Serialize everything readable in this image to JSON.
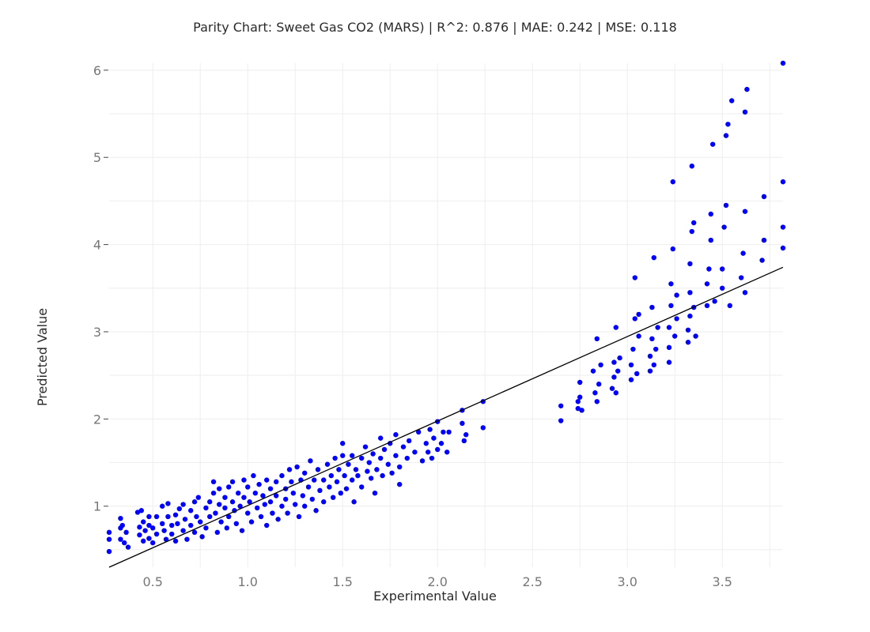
{
  "chart_data": {
    "type": "scatter",
    "title": "Parity Chart: Sweet Gas CO2 (MARS) | R^2: 0.876 | MAE: 0.242 | MSE: 0.118",
    "xlabel": "Experimental Value",
    "ylabel": "Predicted Value",
    "xlim": [
      0.27,
      3.82
    ],
    "ylim": [
      0.3,
      6.08
    ],
    "xticks": [
      0.5,
      1.0,
      1.5,
      2.0,
      2.5,
      3.0,
      3.5
    ],
    "xtick_labels": [
      "0.5",
      "1.0",
      "1.5",
      "2.0",
      "2.5",
      "3.0",
      "3.5"
    ],
    "yticks": [
      1,
      2,
      3,
      4,
      5,
      6
    ],
    "ytick_labels": [
      "1",
      "2",
      "3",
      "4",
      "5",
      "6"
    ],
    "grid": true,
    "legend": "none",
    "point_color": "#0000ff",
    "line_color": "#000000",
    "reference_line": {
      "x": [
        0.27,
        3.82
      ],
      "y": [
        0.3,
        3.74
      ]
    },
    "series": [
      {
        "points": [
          [
            0.27,
            0.48
          ],
          [
            0.27,
            0.62
          ],
          [
            0.27,
            0.7
          ],
          [
            0.33,
            0.86
          ],
          [
            0.33,
            0.75
          ],
          [
            0.33,
            0.62
          ],
          [
            0.34,
            0.78
          ],
          [
            0.35,
            0.58
          ],
          [
            0.36,
            0.7
          ],
          [
            0.37,
            0.53
          ],
          [
            0.42,
            0.93
          ],
          [
            0.43,
            0.76
          ],
          [
            0.43,
            0.67
          ],
          [
            0.44,
            0.95
          ],
          [
            0.45,
            0.82
          ],
          [
            0.45,
            0.6
          ],
          [
            0.46,
            0.72
          ],
          [
            0.48,
            0.88
          ],
          [
            0.48,
            0.78
          ],
          [
            0.48,
            0.63
          ],
          [
            0.5,
            0.75
          ],
          [
            0.5,
            0.58
          ],
          [
            0.52,
            0.68
          ],
          [
            0.52,
            0.88
          ],
          [
            0.55,
            1.0
          ],
          [
            0.55,
            0.8
          ],
          [
            0.56,
            0.72
          ],
          [
            0.57,
            0.62
          ],
          [
            0.58,
            0.88
          ],
          [
            0.58,
            1.03
          ],
          [
            0.6,
            0.78
          ],
          [
            0.6,
            0.68
          ],
          [
            0.62,
            0.6
          ],
          [
            0.62,
            0.9
          ],
          [
            0.63,
            0.8
          ],
          [
            0.64,
            0.97
          ],
          [
            0.66,
            0.72
          ],
          [
            0.66,
            1.02
          ],
          [
            0.67,
            0.85
          ],
          [
            0.68,
            0.62
          ],
          [
            0.7,
            0.95
          ],
          [
            0.7,
            0.78
          ],
          [
            0.72,
            1.05
          ],
          [
            0.72,
            0.7
          ],
          [
            0.73,
            0.88
          ],
          [
            0.74,
            1.1
          ],
          [
            0.75,
            0.82
          ],
          [
            0.76,
            0.65
          ],
          [
            0.78,
            0.98
          ],
          [
            0.78,
            0.75
          ],
          [
            0.8,
            1.05
          ],
          [
            0.8,
            0.88
          ],
          [
            0.82,
            1.28
          ],
          [
            0.82,
            1.15
          ],
          [
            0.83,
            0.92
          ],
          [
            0.84,
            0.7
          ],
          [
            0.85,
            1.2
          ],
          [
            0.85,
            1.02
          ],
          [
            0.86,
            0.82
          ],
          [
            0.88,
            0.98
          ],
          [
            0.88,
            1.1
          ],
          [
            0.89,
            0.75
          ],
          [
            0.9,
            1.22
          ],
          [
            0.9,
            0.88
          ],
          [
            0.92,
            1.28
          ],
          [
            0.92,
            1.05
          ],
          [
            0.93,
            0.95
          ],
          [
            0.94,
            0.8
          ],
          [
            0.95,
            1.15
          ],
          [
            0.96,
            1.0
          ],
          [
            0.97,
            0.72
          ],
          [
            0.98,
            1.3
          ],
          [
            0.98,
            1.1
          ],
          [
            1.0,
            1.22
          ],
          [
            1.0,
            0.92
          ],
          [
            1.01,
            1.05
          ],
          [
            1.02,
            0.82
          ],
          [
            1.03,
            1.35
          ],
          [
            1.04,
            1.15
          ],
          [
            1.05,
            0.98
          ],
          [
            1.06,
            1.25
          ],
          [
            1.07,
            0.88
          ],
          [
            1.08,
            1.12
          ],
          [
            1.09,
            1.02
          ],
          [
            1.1,
            1.3
          ],
          [
            1.1,
            0.78
          ],
          [
            1.12,
            1.2
          ],
          [
            1.12,
            1.05
          ],
          [
            1.13,
            0.92
          ],
          [
            1.15,
            1.28
          ],
          [
            1.15,
            1.12
          ],
          [
            1.16,
            0.85
          ],
          [
            1.18,
            1.35
          ],
          [
            1.18,
            1.0
          ],
          [
            1.2,
            1.2
          ],
          [
            1.2,
            1.08
          ],
          [
            1.21,
            0.92
          ],
          [
            1.22,
            1.42
          ],
          [
            1.23,
            1.28
          ],
          [
            1.24,
            1.15
          ],
          [
            1.25,
            1.02
          ],
          [
            1.26,
            1.45
          ],
          [
            1.27,
            0.88
          ],
          [
            1.28,
            1.3
          ],
          [
            1.29,
            1.12
          ],
          [
            1.3,
            1.38
          ],
          [
            1.3,
            1.0
          ],
          [
            1.32,
            1.22
          ],
          [
            1.33,
            1.52
          ],
          [
            1.34,
            1.08
          ],
          [
            1.35,
            1.3
          ],
          [
            1.36,
            0.95
          ],
          [
            1.37,
            1.42
          ],
          [
            1.38,
            1.18
          ],
          [
            1.4,
            1.3
          ],
          [
            1.4,
            1.05
          ],
          [
            1.42,
            1.48
          ],
          [
            1.43,
            1.22
          ],
          [
            1.44,
            1.35
          ],
          [
            1.45,
            1.1
          ],
          [
            1.46,
            1.55
          ],
          [
            1.47,
            1.28
          ],
          [
            1.48,
            1.42
          ],
          [
            1.49,
            1.15
          ],
          [
            1.5,
            1.58
          ],
          [
            1.5,
            1.72
          ],
          [
            1.51,
            1.35
          ],
          [
            1.52,
            1.2
          ],
          [
            1.53,
            1.48
          ],
          [
            1.55,
            1.3
          ],
          [
            1.55,
            1.58
          ],
          [
            1.56,
            1.05
          ],
          [
            1.57,
            1.42
          ],
          [
            1.58,
            1.35
          ],
          [
            1.6,
            1.55
          ],
          [
            1.6,
            1.22
          ],
          [
            1.62,
            1.68
          ],
          [
            1.63,
            1.4
          ],
          [
            1.64,
            1.5
          ],
          [
            1.65,
            1.32
          ],
          [
            1.66,
            1.6
          ],
          [
            1.67,
            1.15
          ],
          [
            1.68,
            1.42
          ],
          [
            1.7,
            1.55
          ],
          [
            1.7,
            1.78
          ],
          [
            1.71,
            1.35
          ],
          [
            1.72,
            1.65
          ],
          [
            1.74,
            1.48
          ],
          [
            1.75,
            1.72
          ],
          [
            1.76,
            1.38
          ],
          [
            1.78,
            1.58
          ],
          [
            1.78,
            1.82
          ],
          [
            1.8,
            1.45
          ],
          [
            1.8,
            1.25
          ],
          [
            1.82,
            1.68
          ],
          [
            1.84,
            1.55
          ],
          [
            1.85,
            1.75
          ],
          [
            1.88,
            1.62
          ],
          [
            1.9,
            1.85
          ],
          [
            1.92,
            1.52
          ],
          [
            1.94,
            1.72
          ],
          [
            1.95,
            1.62
          ],
          [
            1.96,
            1.88
          ],
          [
            1.97,
            1.55
          ],
          [
            1.98,
            1.78
          ],
          [
            2.0,
            1.97
          ],
          [
            2.0,
            1.65
          ],
          [
            2.02,
            1.72
          ],
          [
            2.03,
            1.85
          ],
          [
            2.05,
            1.62
          ],
          [
            2.06,
            1.85
          ],
          [
            2.13,
            2.1
          ],
          [
            2.13,
            1.95
          ],
          [
            2.14,
            1.75
          ],
          [
            2.15,
            1.82
          ],
          [
            2.24,
            2.2
          ],
          [
            2.24,
            1.9
          ],
          [
            2.65,
            2.15
          ],
          [
            2.65,
            1.98
          ],
          [
            2.74,
            2.2
          ],
          [
            2.74,
            2.12
          ],
          [
            2.75,
            2.25
          ],
          [
            2.75,
            2.42
          ],
          [
            2.76,
            2.1
          ],
          [
            2.82,
            2.55
          ],
          [
            2.83,
            2.3
          ],
          [
            2.84,
            2.2
          ],
          [
            2.85,
            2.4
          ],
          [
            2.86,
            2.62
          ],
          [
            2.84,
            2.92
          ],
          [
            2.92,
            2.35
          ],
          [
            2.93,
            2.48
          ],
          [
            2.93,
            2.65
          ],
          [
            2.94,
            2.3
          ],
          [
            2.94,
            3.05
          ],
          [
            2.95,
            2.55
          ],
          [
            2.96,
            2.7
          ],
          [
            3.02,
            2.45
          ],
          [
            3.02,
            2.62
          ],
          [
            3.03,
            2.8
          ],
          [
            3.04,
            3.15
          ],
          [
            3.04,
            3.62
          ],
          [
            3.05,
            2.52
          ],
          [
            3.06,
            2.95
          ],
          [
            3.06,
            3.2
          ],
          [
            3.12,
            2.55
          ],
          [
            3.12,
            2.72
          ],
          [
            3.13,
            2.92
          ],
          [
            3.13,
            3.28
          ],
          [
            3.14,
            2.62
          ],
          [
            3.14,
            3.85
          ],
          [
            3.15,
            2.8
          ],
          [
            3.16,
            3.05
          ],
          [
            3.22,
            2.65
          ],
          [
            3.22,
            2.82
          ],
          [
            3.22,
            3.05
          ],
          [
            3.23,
            3.3
          ],
          [
            3.23,
            3.55
          ],
          [
            3.24,
            3.95
          ],
          [
            3.24,
            4.72
          ],
          [
            3.25,
            2.95
          ],
          [
            3.26,
            3.15
          ],
          [
            3.26,
            3.42
          ],
          [
            3.32,
            2.88
          ],
          [
            3.32,
            3.02
          ],
          [
            3.33,
            3.18
          ],
          [
            3.33,
            3.45
          ],
          [
            3.33,
            3.78
          ],
          [
            3.34,
            4.15
          ],
          [
            3.34,
            4.9
          ],
          [
            3.35,
            3.28
          ],
          [
            3.35,
            4.25
          ],
          [
            3.36,
            2.95
          ],
          [
            3.42,
            3.3
          ],
          [
            3.42,
            3.55
          ],
          [
            3.43,
            3.72
          ],
          [
            3.44,
            4.05
          ],
          [
            3.44,
            4.35
          ],
          [
            3.45,
            5.15
          ],
          [
            3.46,
            3.35
          ],
          [
            3.5,
            3.5
          ],
          [
            3.5,
            3.72
          ],
          [
            3.51,
            4.2
          ],
          [
            3.52,
            4.45
          ],
          [
            3.52,
            5.25
          ],
          [
            3.53,
            5.38
          ],
          [
            3.54,
            3.3
          ],
          [
            3.55,
            5.65
          ],
          [
            3.6,
            3.62
          ],
          [
            3.61,
            3.9
          ],
          [
            3.62,
            4.38
          ],
          [
            3.62,
            5.52
          ],
          [
            3.63,
            5.78
          ],
          [
            3.62,
            3.45
          ],
          [
            3.71,
            3.82
          ],
          [
            3.72,
            4.05
          ],
          [
            3.72,
            4.55
          ],
          [
            3.82,
            4.2
          ],
          [
            3.82,
            4.72
          ],
          [
            3.82,
            3.96
          ],
          [
            3.82,
            6.08
          ]
        ]
      }
    ]
  }
}
